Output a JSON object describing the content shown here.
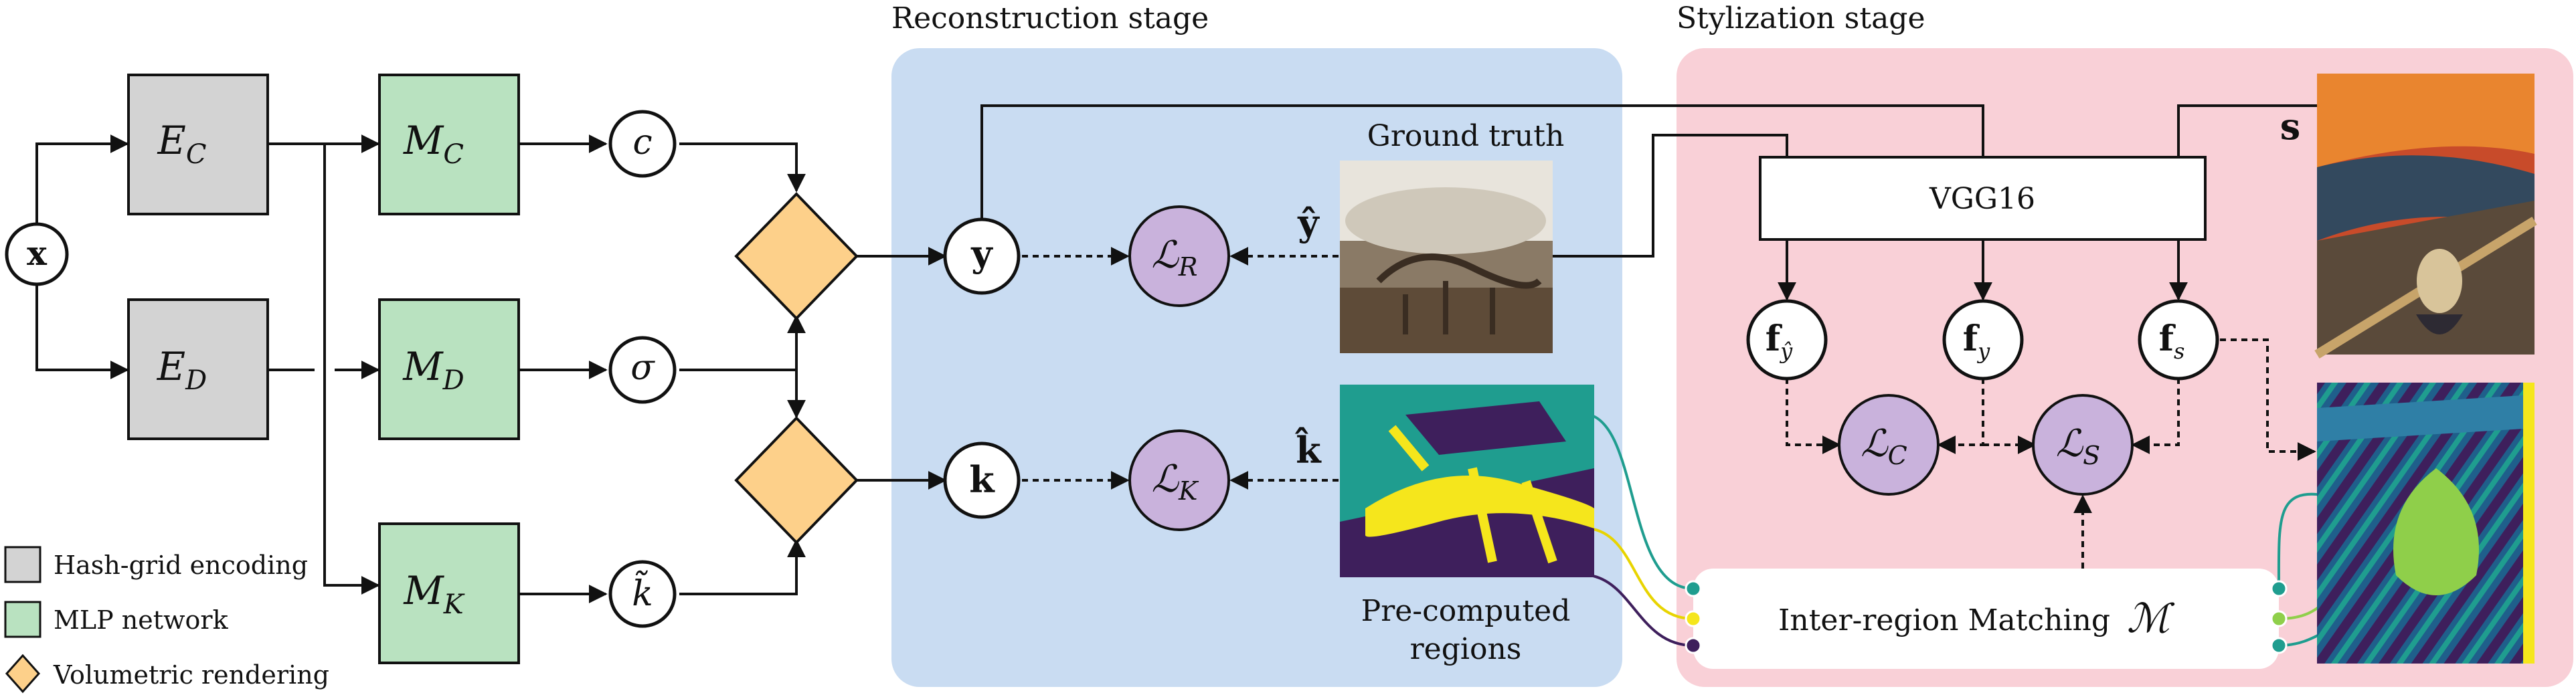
{
  "stages": {
    "reconstruction": "Reconstruction stage",
    "stylization": "Stylization stage"
  },
  "nodes": {
    "x": "x",
    "ec": "E",
    "ec_sub": "C",
    "ed": "E",
    "ed_sub": "D",
    "mc": "M",
    "mc_sub": "C",
    "md": "M",
    "md_sub": "D",
    "mk": "M",
    "mk_sub": "K",
    "c": "c",
    "sigma": "σ",
    "ktilde": "k̃",
    "y": "y",
    "k": "k",
    "lr": "ℒ",
    "lr_sub": "R",
    "lk": "ℒ",
    "lk_sub": "K",
    "lc": "ℒ",
    "lc_sub": "C",
    "ls": "ℒ",
    "ls_sub": "S",
    "fy_hat": "f",
    "fy_hat_sub": "ŷ",
    "fy": "f",
    "fy_sub": "y",
    "fs": "f",
    "fs_sub": "s"
  },
  "labels": {
    "y_hat": "ŷ",
    "k_hat": "k̂",
    "s": "s",
    "ground_truth": "Ground truth",
    "precomputed_1": "Pre-computed",
    "precomputed_2": "regions",
    "vgg": "VGG16",
    "matching": "Inter-region Matching",
    "matching_symbol": "ℳ"
  },
  "legend": [
    {
      "label": "Hash-grid encoding",
      "color": "#d3d3d3"
    },
    {
      "label": "MLP network",
      "color": "#b9e2c0"
    },
    {
      "label": "Volumetric rendering",
      "color": "#fdd08a"
    }
  ],
  "colors": {
    "reconstruction_bg": "#c9dcf2",
    "stylization_bg": "#f9d0d7",
    "encoder": "#d3d3d3",
    "mlp": "#b9e2c0",
    "render": "#fdd08a",
    "loss": "#c9b2dc",
    "region_teal": "#1f9d8f",
    "region_yellow": "#f5e61c",
    "region_purple": "#3e1f5c"
  }
}
